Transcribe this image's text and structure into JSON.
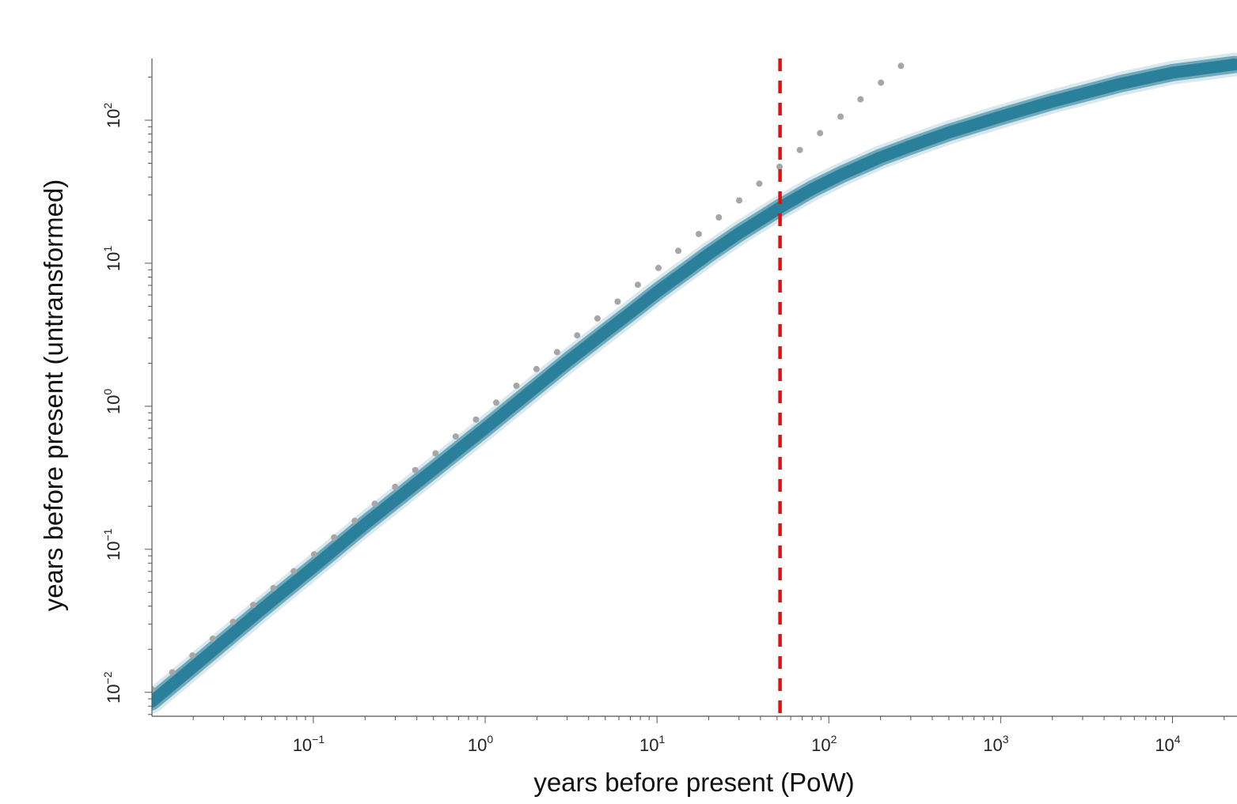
{
  "chart_data": {
    "type": "scatter",
    "title": "",
    "xlabel": "years before present (PoW)",
    "ylabel": "years before present (untransformed)",
    "x_scale": "log",
    "y_scale": "log",
    "xlim": [
      0.0115,
      23000
    ],
    "ylim": [
      0.0068,
      270
    ],
    "x_ticks": [
      {
        "value": 0.1,
        "base": "10",
        "exp": "−1"
      },
      {
        "value": 1,
        "base": "10",
        "exp": "0"
      },
      {
        "value": 10,
        "base": "10",
        "exp": "1"
      },
      {
        "value": 100,
        "base": "10",
        "exp": "2"
      },
      {
        "value": 1000,
        "base": "10",
        "exp": "3"
      },
      {
        "value": 10000,
        "base": "10",
        "exp": "4"
      }
    ],
    "y_ticks": [
      {
        "value": 0.01,
        "base": "10",
        "exp": "−2"
      },
      {
        "value": 0.1,
        "base": "10",
        "exp": "−1"
      },
      {
        "value": 1,
        "base": "10",
        "exp": "0"
      },
      {
        "value": 10,
        "base": "10",
        "exp": "1"
      },
      {
        "value": 100,
        "base": "10",
        "exp": "2"
      }
    ],
    "series": [
      {
        "kind": "band",
        "color": "#2a7f9a",
        "points": [
          [
            0.0115,
            0.0086
          ],
          [
            0.02,
            0.015
          ],
          [
            0.05,
            0.038
          ],
          [
            0.1,
            0.075
          ],
          [
            0.2,
            0.15
          ],
          [
            0.5,
            0.36
          ],
          [
            1,
            0.7
          ],
          [
            2,
            1.38
          ],
          [
            3,
            2.05
          ],
          [
            5,
            3.3
          ],
          [
            7,
            4.5
          ],
          [
            10,
            6.3
          ],
          [
            15,
            9.0
          ],
          [
            20,
            11.6
          ],
          [
            30,
            16.2
          ],
          [
            52,
            24.5
          ],
          [
            80,
            33
          ],
          [
            120,
            42
          ],
          [
            200,
            55
          ],
          [
            300,
            66
          ],
          [
            500,
            82
          ],
          [
            1000,
            106
          ],
          [
            2000,
            135
          ],
          [
            5000,
            180
          ],
          [
            10000,
            215
          ],
          [
            23000,
            245
          ]
        ]
      },
      {
        "kind": "points",
        "color": "#a6a6a6",
        "points": [
          [
            0.0115,
            0.0105
          ],
          [
            0.0151,
            0.0138
          ],
          [
            0.0198,
            0.0181
          ],
          [
            0.026,
            0.0237
          ],
          [
            0.0341,
            0.0311
          ],
          [
            0.0447,
            0.0408
          ],
          [
            0.0586,
            0.0535
          ],
          [
            0.0769,
            0.0702
          ],
          [
            0.101,
            0.0921
          ],
          [
            0.132,
            0.121
          ],
          [
            0.174,
            0.158
          ],
          [
            0.228,
            0.208
          ],
          [
            0.299,
            0.273
          ],
          [
            0.392,
            0.358
          ],
          [
            0.514,
            0.469
          ],
          [
            0.674,
            0.615
          ],
          [
            0.884,
            0.807
          ],
          [
            1.16,
            1.06
          ],
          [
            1.52,
            1.39
          ],
          [
            1.99,
            1.82
          ],
          [
            2.62,
            2.39
          ],
          [
            3.43,
            3.13
          ],
          [
            4.5,
            4.11
          ],
          [
            5.9,
            5.39
          ],
          [
            7.74,
            7.07
          ],
          [
            10.2,
            9.27
          ],
          [
            13.3,
            12.2
          ],
          [
            17.5,
            16.0
          ],
          [
            22.9,
            20.9
          ],
          [
            30.1,
            27.5
          ],
          [
            39.4,
            36.0
          ],
          [
            51.7,
            47.2
          ],
          [
            67.8,
            61.9
          ],
          [
            88.9,
            81.2
          ],
          [
            117,
            106
          ],
          [
            153,
            140
          ],
          [
            201,
            183
          ],
          [
            263,
            240
          ]
        ]
      }
    ],
    "reference_line": {
      "orientation": "vertical",
      "x": 52,
      "color": "#dd1111",
      "style": "dashed"
    }
  }
}
